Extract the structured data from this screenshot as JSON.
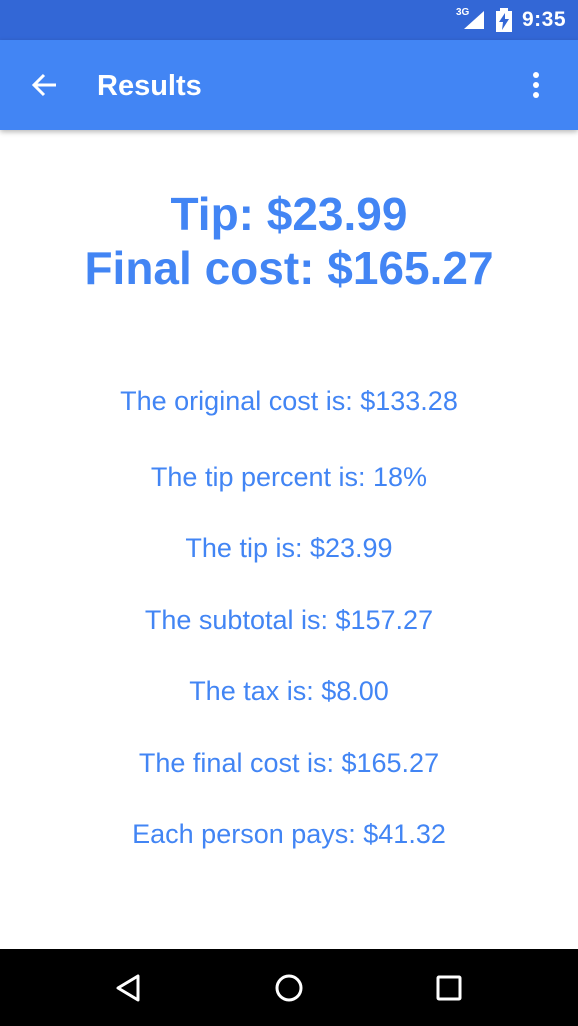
{
  "status_bar": {
    "network_label": "3G",
    "time": "9:35",
    "icons": [
      "signal-icon",
      "battery-charging-icon"
    ]
  },
  "app_bar": {
    "title": "Results",
    "back_icon": "arrow-back-icon",
    "menu_icon": "more-vert-icon"
  },
  "summary": {
    "tip": "Tip: $23.99",
    "final_cost": "Final cost: $165.27"
  },
  "details": [
    "The original cost is: $133.28",
    "The tip percent is: 18%",
    "The tip is: $23.99",
    "The subtotal is: $157.27",
    "The tax is: $8.00",
    "The final cost is: $165.27",
    "Each person pays: $41.32"
  ],
  "nav_bar": {
    "icons": [
      "back-triangle-icon",
      "home-circle-icon",
      "recents-square-icon"
    ]
  },
  "colors": {
    "status_bar": "#3367d6",
    "app_bar": "#4285f4",
    "accent_text": "#4285f4",
    "nav_bar": "#000000"
  }
}
